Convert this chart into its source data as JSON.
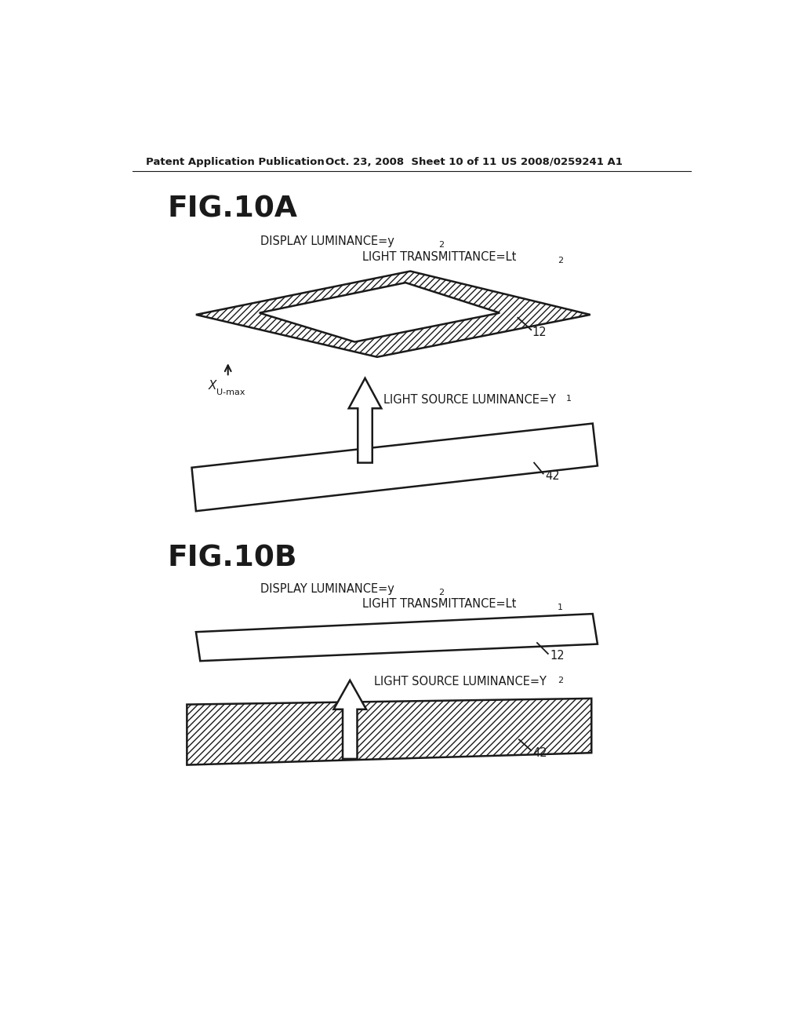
{
  "header_left": "Patent Application Publication",
  "header_mid": "Oct. 23, 2008  Sheet 10 of 11",
  "header_right": "US 2008/0259241 A1",
  "fig_a_title": "FIG.10A",
  "fig_b_title": "FIG.10B",
  "bg_color": "#ffffff",
  "line_color": "#1a1a1a",
  "text_color": "#1a1a1a"
}
